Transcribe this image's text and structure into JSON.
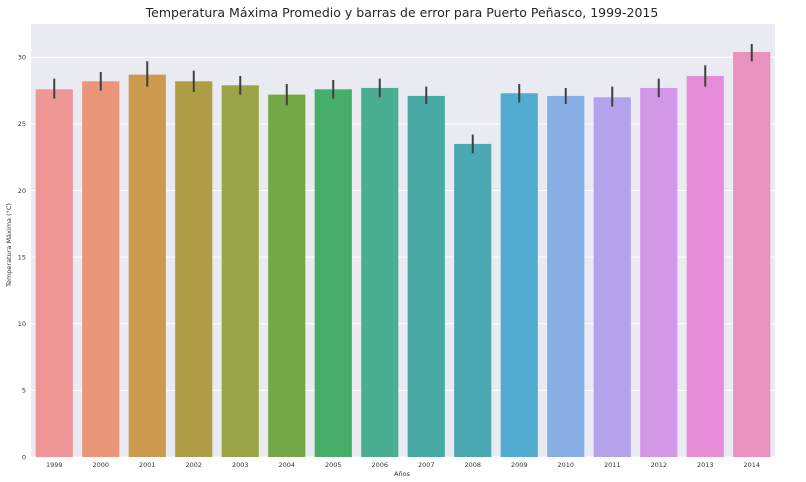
{
  "chart_data": {
    "type": "bar",
    "title": "Temperatura Máxima Promedio y barras de error para Puerto Peñasco, 1999-2015",
    "xlabel": "Años",
    "ylabel": "Temperatura Máxima (°C)",
    "categories": [
      "1999",
      "2000",
      "2001",
      "2002",
      "2003",
      "2004",
      "2005",
      "2006",
      "2007",
      "2008",
      "2009",
      "2010",
      "2011",
      "2012",
      "2013",
      "2014"
    ],
    "values": [
      27.6,
      28.2,
      28.7,
      28.2,
      27.9,
      27.2,
      27.6,
      27.7,
      27.1,
      23.5,
      27.3,
      27.1,
      27.0,
      27.7,
      28.6,
      30.4
    ],
    "error_low": [
      26.9,
      27.5,
      27.8,
      27.4,
      27.2,
      26.4,
      26.9,
      27.0,
      26.5,
      22.8,
      26.6,
      26.5,
      26.3,
      27.0,
      27.8,
      29.7
    ],
    "error_high": [
      28.4,
      28.9,
      29.7,
      29.0,
      28.6,
      28.0,
      28.3,
      28.4,
      27.8,
      24.2,
      28.0,
      27.7,
      27.8,
      28.4,
      29.4,
      31.0
    ],
    "ylim": [
      0,
      32.5
    ],
    "yticks": [
      0,
      5,
      10,
      15,
      20,
      25,
      30
    ],
    "grid": true,
    "colors": {
      "background": "#eaeaf2",
      "grid": "#ffffff",
      "error_bar": "#3f3f3f",
      "bars": [
        "#ee9696",
        "#e9967a",
        "#cc9a4d",
        "#b09e47",
        "#99a447",
        "#75a846",
        "#47ae6a",
        "#4aae90",
        "#48aaa4",
        "#4aa9b3",
        "#52abd0",
        "#88aee6",
        "#b4a3ec",
        "#d496e6",
        "#e68dd9",
        "#e991bf"
      ]
    }
  }
}
